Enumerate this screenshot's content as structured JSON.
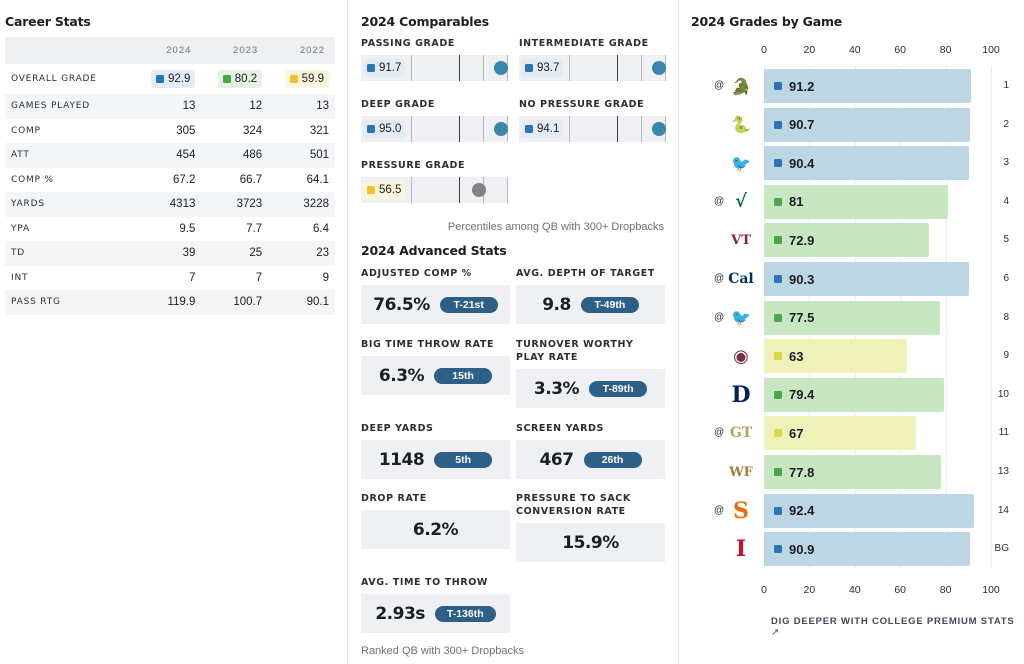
{
  "career": {
    "title": "Career Stats",
    "years": [
      "2024",
      "2023",
      "2022"
    ],
    "grade_row": {
      "label": "OVERALL GRADE",
      "values": [
        "92.9",
        "80.2",
        "59.9"
      ],
      "colors": [
        "#2b74b8",
        "#4ca64c",
        "#f2c12e"
      ],
      "bg": [
        "#e3ecf4",
        "#e6f1e3",
        "#fbf5dc"
      ]
    },
    "rows": [
      {
        "label": "GAMES PLAYED",
        "values": [
          "13",
          "12",
          "13"
        ]
      },
      {
        "label": "COMP",
        "values": [
          "305",
          "324",
          "321"
        ]
      },
      {
        "label": "ATT",
        "values": [
          "454",
          "486",
          "501"
        ]
      },
      {
        "label": "COMP %",
        "values": [
          "67.2",
          "66.7",
          "64.1"
        ]
      },
      {
        "label": "YARDS",
        "values": [
          "4313",
          "3723",
          "3228"
        ]
      },
      {
        "label": "YPA",
        "values": [
          "9.5",
          "7.7",
          "6.4"
        ]
      },
      {
        "label": "TD",
        "values": [
          "39",
          "25",
          "23"
        ]
      },
      {
        "label": "INT",
        "values": [
          "7",
          "7",
          "9"
        ]
      },
      {
        "label": "PASS RTG",
        "values": [
          "119.9",
          "100.7",
          "90.1"
        ]
      }
    ]
  },
  "comparables": {
    "title": "2024 Comparables",
    "items": [
      {
        "label": "PASSING GRADE",
        "value": "91.7",
        "percentile": 0.97,
        "color": "#2b74b8",
        "dot": "#3a87a8"
      },
      {
        "label": "INTERMEDIATE GRADE",
        "value": "93.7",
        "percentile": 0.99,
        "color": "#2b74b8",
        "dot": "#3a87a8"
      },
      {
        "label": "DEEP GRADE",
        "value": "95.0",
        "percentile": 0.95,
        "color": "#2b74b8",
        "dot": "#3a87a8"
      },
      {
        "label": "NO PRESSURE GRADE",
        "value": "94.1",
        "percentile": 0.99,
        "color": "#2b74b8",
        "dot": "#3a87a8"
      },
      {
        "label": "PRESSURE GRADE",
        "value": "56.5",
        "percentile": 0.7,
        "color": "#f2c12e",
        "dot": "#808285",
        "bg": "#fbf5dc"
      }
    ],
    "note": "Percentiles among QB with 300+ Dropbacks"
  },
  "advanced": {
    "title": "2024 Advanced Stats",
    "items": [
      {
        "label": "ADJUSTED COMP %",
        "value": "76.5%",
        "rank": "T-21st"
      },
      {
        "label": "AVG. DEPTH OF TARGET",
        "value": "9.8",
        "rank": "T-49th"
      },
      {
        "label": "BIG TIME THROW RATE",
        "value": "6.3%",
        "rank": "15th"
      },
      {
        "label": "TURNOVER WORTHY PLAY RATE",
        "value": "3.3%",
        "rank": "T-89th"
      },
      {
        "label": "DEEP YARDS",
        "value": "1148",
        "rank": "5th"
      },
      {
        "label": "SCREEN YARDS",
        "value": "467",
        "rank": "26th"
      },
      {
        "label": "DROP RATE",
        "value": "6.2%",
        "rank": ""
      },
      {
        "label": "PRESSURE TO SACK CONVERSION RATE",
        "value": "15.9%",
        "rank": ""
      },
      {
        "label": "AVG. TIME TO THROW",
        "value": "2.93s",
        "rank": "T-136th"
      }
    ],
    "note": "Ranked QB with 300+ Dropbacks"
  },
  "grades_by_game": {
    "title": "2024 Grades by Game",
    "axis_ticks": [
      "0",
      "20",
      "40",
      "60",
      "80",
      "100"
    ],
    "link": "DIG DEEPER WITH COLLEGE PREMIUM STATS"
  },
  "chart_data": {
    "type": "bar",
    "orientation": "horizontal",
    "title": "2024 Grades by Game",
    "xlim": [
      0,
      100
    ],
    "categories": [
      "1",
      "2",
      "3",
      "4",
      "5",
      "6",
      "8",
      "9",
      "10",
      "11",
      "13",
      "14",
      "BG"
    ],
    "away": [
      true,
      false,
      false,
      true,
      false,
      true,
      true,
      false,
      false,
      true,
      false,
      true,
      false
    ],
    "opponent_icons": [
      "florida-gators-logo",
      "famu-logo",
      "louisville-cardinal-logo",
      "usf-bulls-logo",
      "virginia-tech-logo",
      "cal-logo",
      "louisville-cardinal-logo",
      "florida-state-logo",
      "duke-logo",
      "georgia-tech-logo",
      "wake-forest-logo",
      "syracuse-logo",
      "iowa-state-logo"
    ],
    "values": [
      91.2,
      90.7,
      90.4,
      81,
      72.9,
      90.3,
      77.5,
      63,
      79.4,
      67,
      77.8,
      92.4,
      90.9
    ],
    "labels": [
      "91.2",
      "90.7",
      "90.4",
      "81",
      "72.9",
      "90.3",
      "77.5",
      "63",
      "79.4",
      "67",
      "77.8",
      "92.4",
      "90.9"
    ],
    "grid": true
  }
}
